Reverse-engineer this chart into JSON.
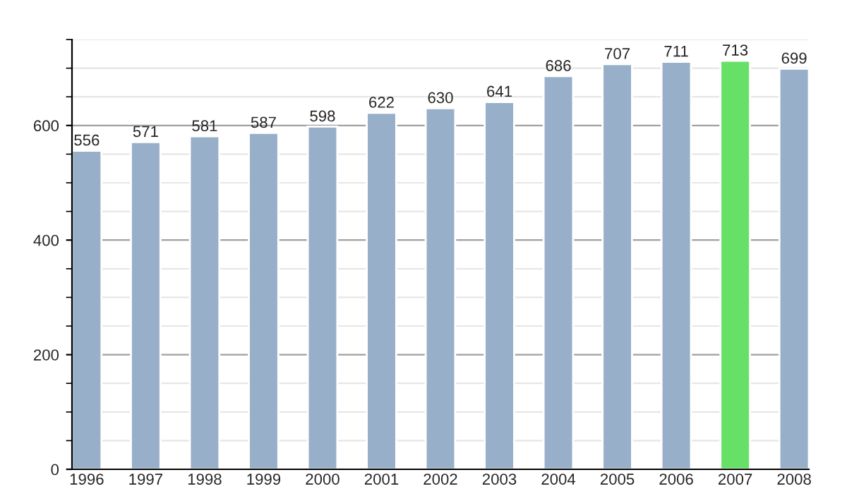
{
  "chart_data": {
    "type": "bar",
    "categories": [
      "1996",
      "1997",
      "1998",
      "1999",
      "2000",
      "2001",
      "2002",
      "2003",
      "2004",
      "2005",
      "2006",
      "2007",
      "2008"
    ],
    "values": [
      556,
      571,
      581,
      587,
      598,
      622,
      630,
      641,
      686,
      707,
      711,
      713,
      699
    ],
    "colors": [
      "#97afc9",
      "#97afc9",
      "#97afc9",
      "#97afc9",
      "#97afc9",
      "#97afc9",
      "#97afc9",
      "#97afc9",
      "#97afc9",
      "#97afc9",
      "#97afc9",
      "#66e066",
      "#97afc9"
    ],
    "ylim": [
      0,
      750
    ],
    "yticks": [
      0,
      200,
      400,
      600
    ],
    "grid": "y",
    "data_labels": true
  }
}
